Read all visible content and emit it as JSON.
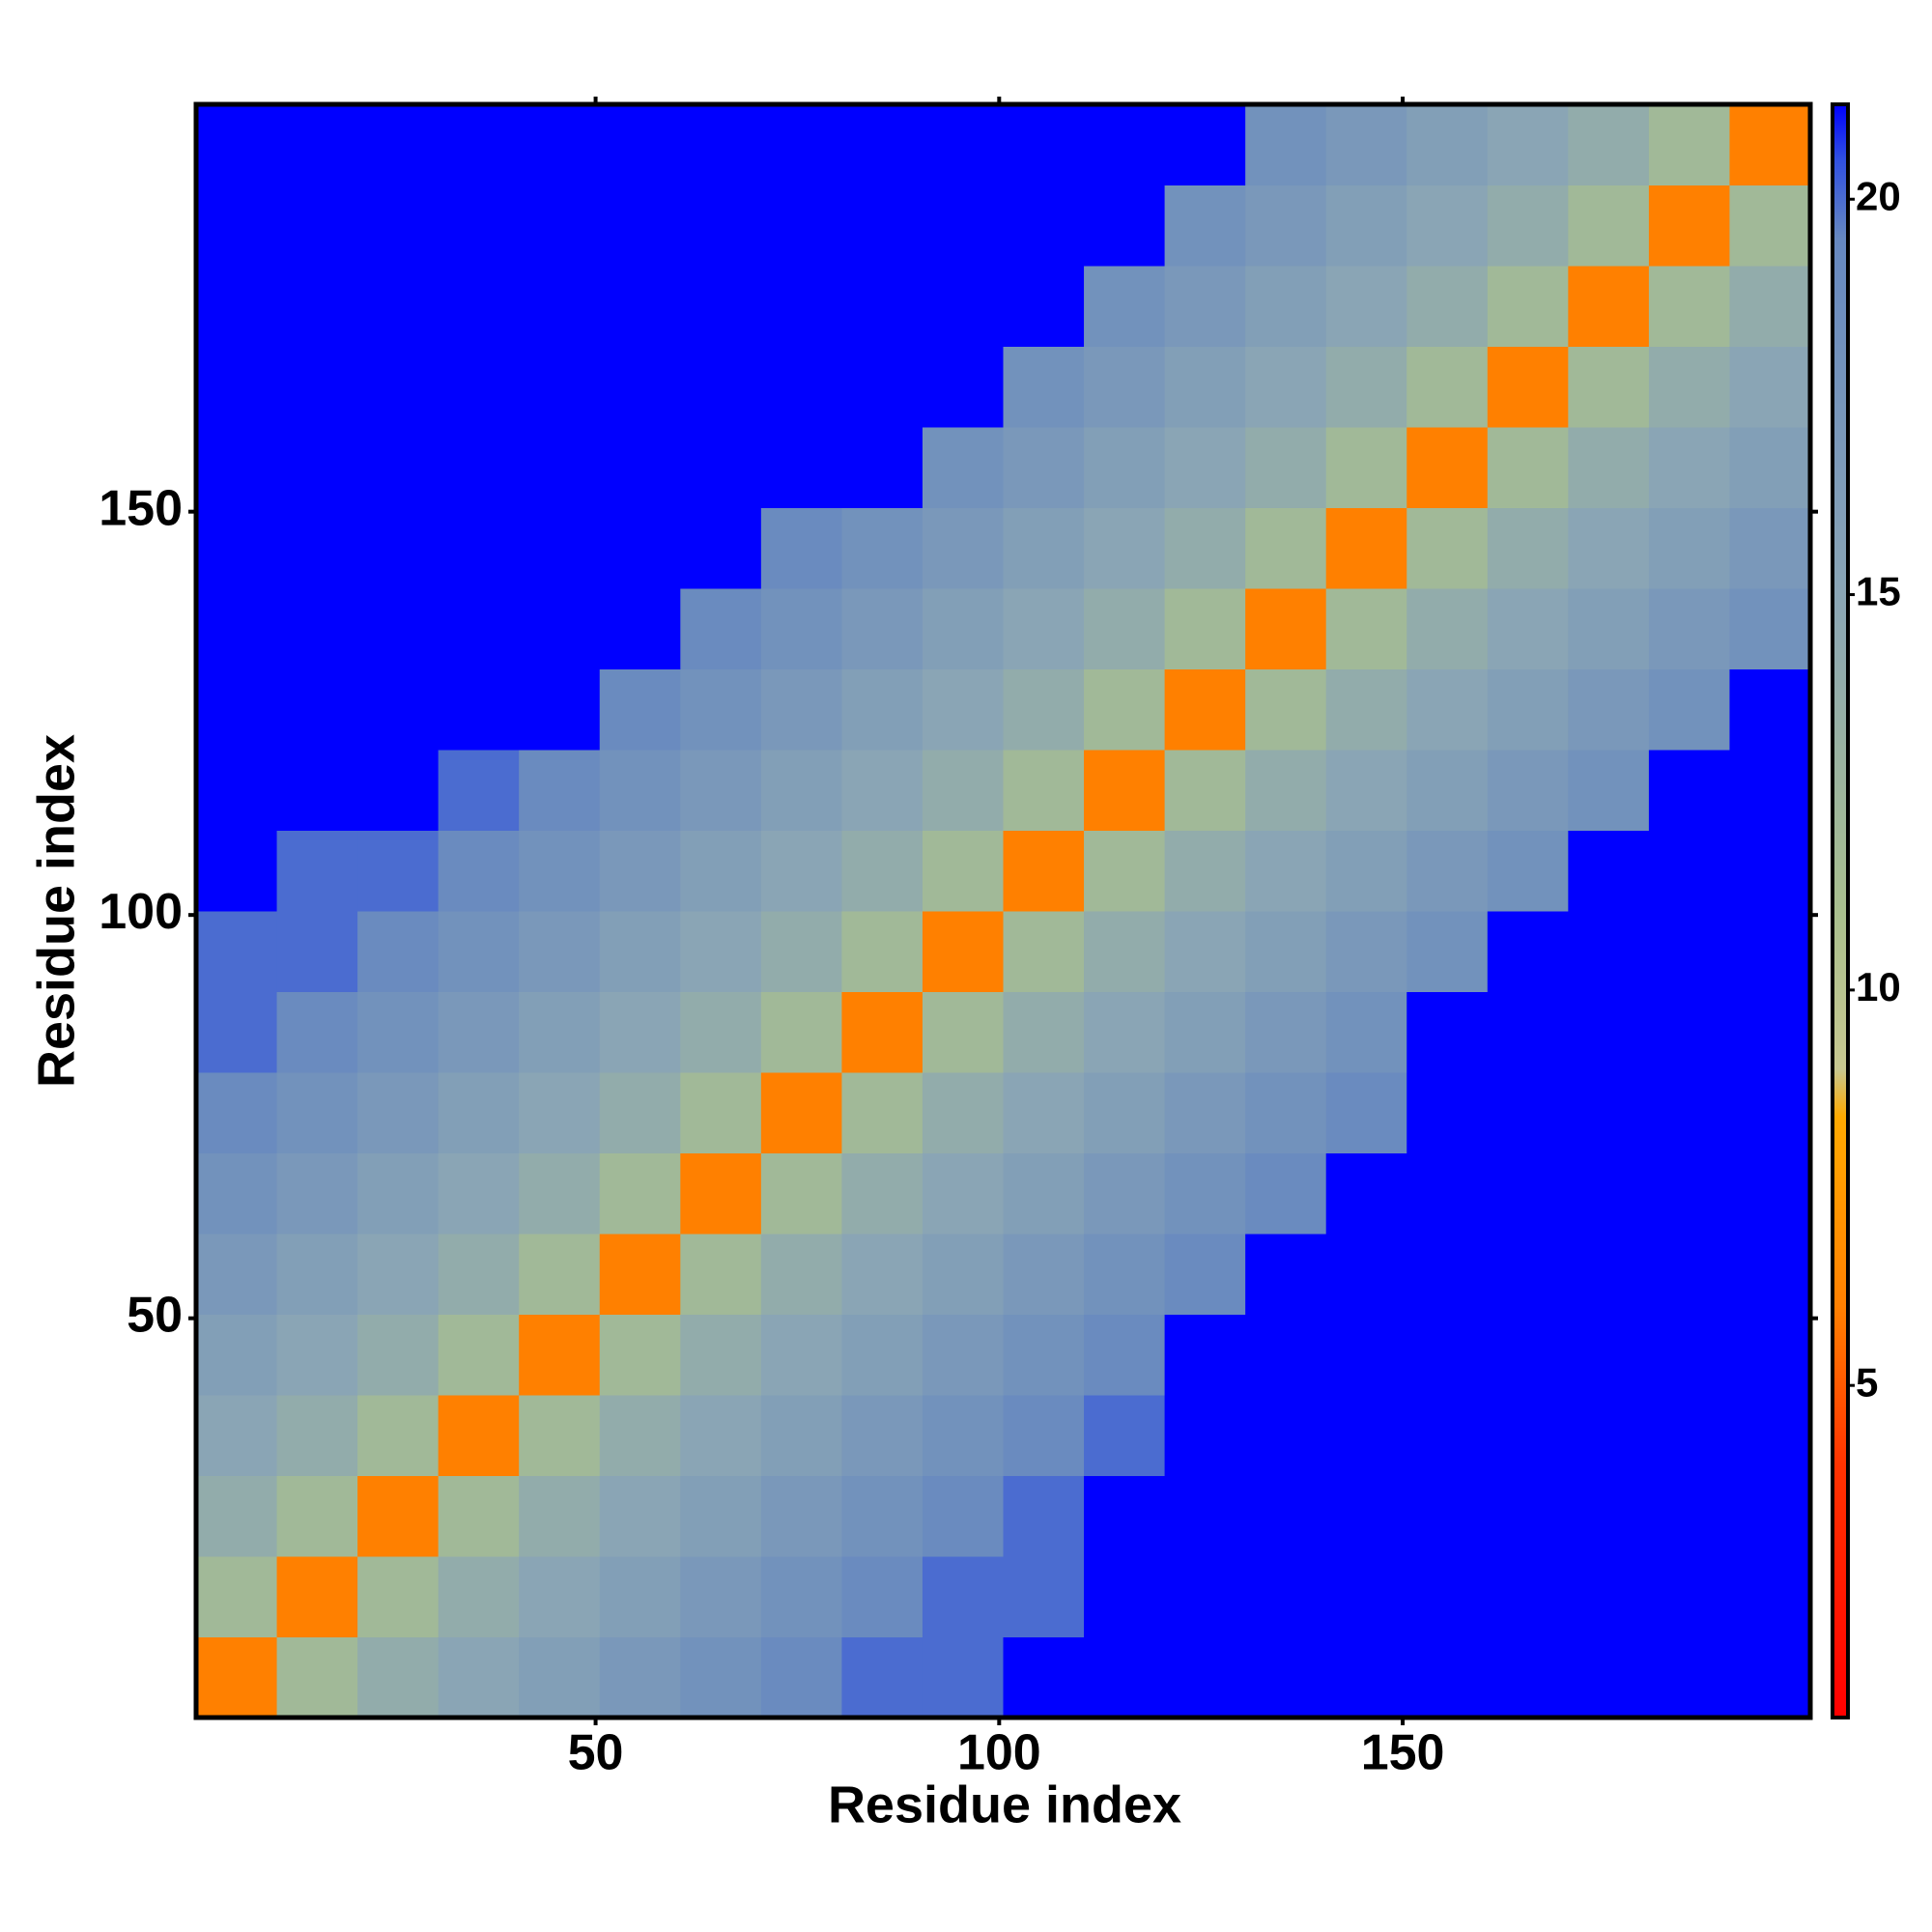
{
  "chart_data": {
    "type": "heatmap",
    "xlabel": "Residue index",
    "ylabel": "Residue index",
    "xbins": [
      0.5,
      10.5,
      20.5,
      30.5,
      40.5,
      50.5,
      60.5,
      70.5,
      80.5,
      90.5,
      100.5,
      110.5,
      120.5,
      130.5,
      140.5,
      150.5,
      160.5,
      170.5,
      180.5,
      190.5,
      200.5
    ],
    "ybins": [
      0.5,
      10.5,
      20.5,
      30.5,
      40.5,
      50.5,
      60.5,
      70.5,
      80.5,
      90.5,
      100.5,
      110.5,
      120.5,
      130.5,
      140.5,
      150.5,
      160.5,
      170.5,
      180.5,
      190.5,
      200.5
    ],
    "xlim": [
      0.5,
      200.5
    ],
    "ylim": [
      0.5,
      200.5
    ],
    "xticks": [
      50,
      100,
      150
    ],
    "yticks": [
      50,
      100,
      150
    ],
    "clim": [
      0.8,
      21.2
    ],
    "cticks": [
      5,
      10,
      15,
      20
    ],
    "colorscale": [
      [
        0.8,
        "#ff0000"
      ],
      [
        4,
        "#ff3300"
      ],
      [
        6,
        "#ff8000"
      ],
      [
        8.4,
        "#ffaa00"
      ],
      [
        9,
        "#c8c890"
      ],
      [
        11,
        "#a9bf8e"
      ],
      [
        15,
        "#8aa5b5"
      ],
      [
        19.5,
        "#6688c0"
      ],
      [
        20.5,
        "#3050e0"
      ],
      [
        21.2,
        "#0000ff"
      ]
    ],
    "values": [
      [
        6,
        12,
        14,
        15,
        16,
        17,
        18,
        19,
        20,
        20,
        21.2,
        21.2,
        21.2,
        21.2,
        21.2,
        21.2,
        21.2,
        21.2,
        21.2,
        21.2
      ],
      [
        12,
        6,
        12,
        14,
        15,
        16,
        17,
        18,
        19,
        20,
        20,
        21.2,
        21.2,
        21.2,
        21.2,
        21.2,
        21.2,
        21.2,
        21.2,
        21.2
      ],
      [
        14,
        12,
        6,
        12,
        14,
        15,
        16,
        17,
        18,
        19,
        20,
        21.2,
        21.2,
        21.2,
        21.2,
        21.2,
        21.2,
        21.2,
        21.2,
        21.2
      ],
      [
        15,
        14,
        12,
        6,
        12,
        14,
        15,
        16,
        17,
        18,
        19,
        20,
        21.2,
        21.2,
        21.2,
        21.2,
        21.2,
        21.2,
        21.2,
        21.2
      ],
      [
        16,
        15,
        14,
        12,
        6,
        12,
        14,
        15,
        16,
        17,
        18,
        19,
        21.2,
        21.2,
        21.2,
        21.2,
        21.2,
        21.2,
        21.2,
        21.2
      ],
      [
        17,
        16,
        15,
        14,
        12,
        6,
        12,
        14,
        15,
        16,
        17,
        18,
        19,
        21.2,
        21.2,
        21.2,
        21.2,
        21.2,
        21.2,
        21.2
      ],
      [
        18,
        17,
        16,
        15,
        14,
        12,
        6,
        12,
        14,
        15,
        16,
        17,
        18,
        19,
        21.2,
        21.2,
        21.2,
        21.2,
        21.2,
        21.2
      ],
      [
        19,
        18,
        17,
        16,
        15,
        14,
        12,
        6,
        12,
        14,
        15,
        16,
        17,
        18,
        19,
        21.2,
        21.2,
        21.2,
        21.2,
        21.2
      ],
      [
        20,
        19,
        18,
        17,
        16,
        15,
        14,
        12,
        6,
        12,
        14,
        15,
        16,
        17,
        18,
        21.2,
        21.2,
        21.2,
        21.2,
        21.2
      ],
      [
        20,
        20,
        19,
        18,
        17,
        16,
        15,
        14,
        12,
        6,
        12,
        14,
        15,
        16,
        17,
        18,
        21.2,
        21.2,
        21.2,
        21.2
      ],
      [
        21.2,
        20,
        20,
        19,
        18,
        17,
        16,
        15,
        14,
        12,
        6,
        12,
        14,
        15,
        16,
        17,
        18,
        21.2,
        21.2,
        21.2
      ],
      [
        21.2,
        21.2,
        21.2,
        20,
        19,
        18,
        17,
        16,
        15,
        14,
        12,
        6,
        12,
        14,
        15,
        16,
        17,
        18,
        21.2,
        21.2
      ],
      [
        21.2,
        21.2,
        21.2,
        21.2,
        21.2,
        19,
        18,
        17,
        16,
        15,
        14,
        12,
        6,
        12,
        14,
        15,
        16,
        17,
        18,
        21.2
      ],
      [
        21.2,
        21.2,
        21.2,
        21.2,
        21.2,
        21.2,
        19,
        18,
        17,
        16,
        15,
        14,
        12,
        6,
        12,
        14,
        15,
        16,
        17,
        18
      ],
      [
        21.2,
        21.2,
        21.2,
        21.2,
        21.2,
        21.2,
        21.2,
        19,
        18,
        17,
        16,
        15,
        14,
        12,
        6,
        12,
        14,
        15,
        16,
        17
      ],
      [
        21.2,
        21.2,
        21.2,
        21.2,
        21.2,
        21.2,
        21.2,
        21.2,
        21.2,
        18,
        17,
        16,
        15,
        14,
        12,
        6,
        12,
        14,
        15,
        16
      ],
      [
        21.2,
        21.2,
        21.2,
        21.2,
        21.2,
        21.2,
        21.2,
        21.2,
        21.2,
        21.2,
        18,
        17,
        16,
        15,
        14,
        12,
        6,
        12,
        14,
        15
      ],
      [
        21.2,
        21.2,
        21.2,
        21.2,
        21.2,
        21.2,
        21.2,
        21.2,
        21.2,
        21.2,
        21.2,
        18,
        17,
        16,
        15,
        14,
        12,
        6,
        12,
        14
      ],
      [
        21.2,
        21.2,
        21.2,
        21.2,
        21.2,
        21.2,
        21.2,
        21.2,
        21.2,
        21.2,
        21.2,
        21.2,
        18,
        17,
        16,
        15,
        14,
        12,
        6,
        12
      ],
      [
        21.2,
        21.2,
        21.2,
        21.2,
        21.2,
        21.2,
        21.2,
        21.2,
        21.2,
        21.2,
        21.2,
        21.2,
        21.2,
        18,
        17,
        16,
        15,
        14,
        12,
        6
      ]
    ]
  }
}
